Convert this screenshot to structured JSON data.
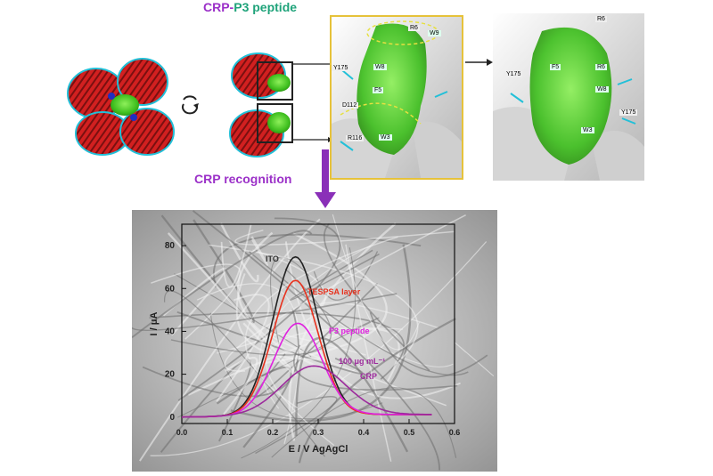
{
  "header": {
    "crp_text": "CRP-",
    "peptide_text": "P3 peptide"
  },
  "recognition_label": "CRP recognition",
  "residue_labels_zoom1": [
    "R6",
    "W9",
    "Y175",
    "W8",
    "F5",
    "D112",
    "R116",
    "W3"
  ],
  "residue_labels_zoom2": [
    "R6",
    "Y175",
    "F5",
    "R6",
    "W8",
    "Y175",
    "W3"
  ],
  "colors": {
    "crp_purple": "#9b30c8",
    "peptide_green": "#1fa37a",
    "highlight_yellow": "#e6c23a",
    "arrow_purple": "#8a2fb8"
  },
  "chart_data": {
    "type": "line",
    "xlabel": "E / V AgAgCl",
    "ylabel": "I / μA",
    "xlim": [
      0.0,
      0.6
    ],
    "ylim": [
      -3,
      90
    ],
    "xticks": [
      "0.0",
      "0.1",
      "0.2",
      "0.3",
      "0.4",
      "0.5",
      "0.6"
    ],
    "yticks": [
      "0",
      "20",
      "40",
      "60",
      "80"
    ],
    "series": [
      {
        "name": "ITO",
        "color": "#222222",
        "peak_x": 0.25,
        "peak_y": 74,
        "sigma": 0.05,
        "x": [
          0.0,
          0.1,
          0.15,
          0.2,
          0.25,
          0.3,
          0.35,
          0.4,
          0.45,
          0.5,
          0.55
        ],
        "y": [
          0,
          0.7,
          11,
          44,
          74,
          45,
          11,
          1.5,
          1,
          1,
          1
        ]
      },
      {
        "name": "TESPSA layer",
        "color": "#e8321e",
        "peak_x": 0.25,
        "peak_y": 63,
        "sigma": 0.05,
        "x": [
          0.0,
          0.1,
          0.15,
          0.2,
          0.25,
          0.3,
          0.35,
          0.4,
          0.45,
          0.5,
          0.55
        ],
        "y": [
          0,
          0.6,
          9.5,
          38,
          63,
          38,
          9.5,
          1.5,
          1,
          1,
          1
        ]
      },
      {
        "name": "P3 peptide",
        "color": "#e020e0",
        "peak_x": 0.255,
        "peak_y": 43,
        "sigma": 0.053,
        "x": [
          0.0,
          0.1,
          0.15,
          0.2,
          0.25,
          0.3,
          0.35,
          0.4,
          0.45,
          0.5,
          0.55
        ],
        "y": [
          0,
          0.5,
          7,
          25,
          43,
          30,
          8,
          1.5,
          1,
          1,
          1
        ]
      },
      {
        "name": "100 μg mL⁻¹ CRP",
        "color": "#9c2a9c",
        "peak_x": 0.29,
        "peak_y": 23,
        "sigma": 0.07,
        "x": [
          0.0,
          0.1,
          0.15,
          0.2,
          0.25,
          0.3,
          0.35,
          0.4,
          0.45,
          0.5,
          0.55
        ],
        "y": [
          0,
          0.6,
          3.5,
          9,
          18,
          23,
          16.5,
          7.5,
          3,
          1.8,
          1.5
        ]
      }
    ],
    "annotations": [
      {
        "text": "ITO",
        "color": "#333333"
      },
      {
        "text": "TESPSA layer",
        "color": "#e8321e"
      },
      {
        "text": "P3 peptide",
        "color": "#e020e0"
      },
      {
        "text": "100 μg mL⁻¹",
        "color": "#9c2a9c"
      },
      {
        "text": "CRP",
        "color": "#9c2a9c"
      }
    ]
  }
}
